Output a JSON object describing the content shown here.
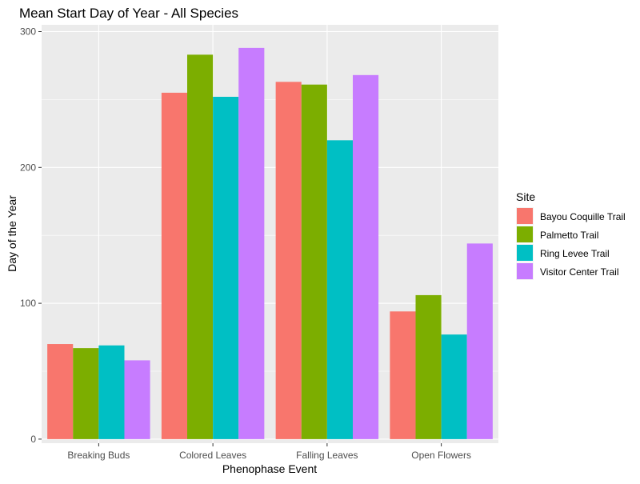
{
  "chart_data": {
    "type": "bar",
    "title": "Mean Start Day of Year - All Species",
    "xlabel": "Phenophase Event",
    "ylabel": "Day of the Year",
    "categories": [
      "Breaking Buds",
      "Colored Leaves",
      "Falling Leaves",
      "Open Flowers"
    ],
    "legend_title": "Site",
    "legend_position": "right",
    "grid": true,
    "ylim": [
      -3,
      305
    ],
    "yticks": [
      0,
      100,
      200,
      300
    ],
    "series": [
      {
        "name": "Bayou Coquille Trail",
        "color": "#F8766D",
        "values": [
          70,
          255,
          263,
          94
        ]
      },
      {
        "name": "Palmetto Trail",
        "color": "#7CAE00",
        "values": [
          67,
          283,
          261,
          106
        ]
      },
      {
        "name": "Ring Levee Trail",
        "color": "#00BFC4",
        "values": [
          69,
          252,
          220,
          77
        ]
      },
      {
        "name": "Visitor Center Trail",
        "color": "#C77CFF",
        "values": [
          58,
          288,
          268,
          144
        ]
      }
    ]
  }
}
